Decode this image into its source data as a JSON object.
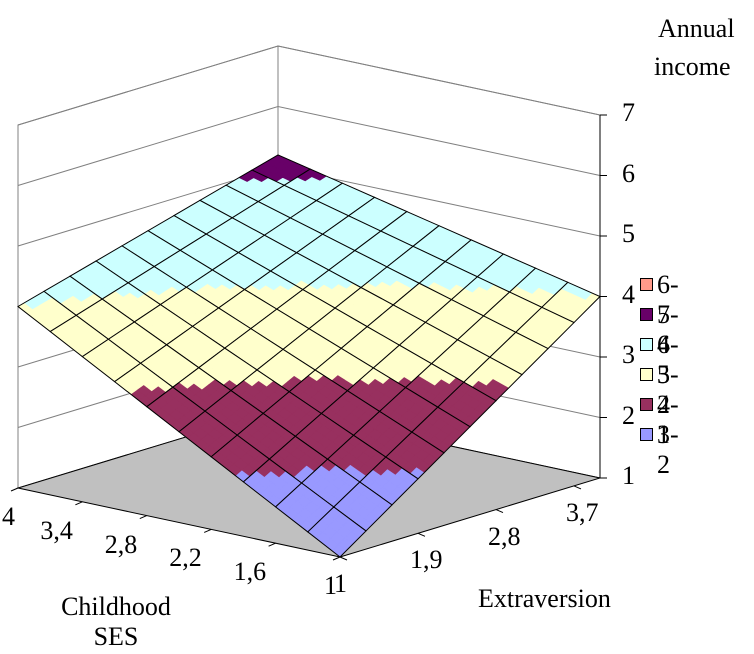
{
  "chart_data": {
    "type": "surface",
    "zlabel_lines": [
      "Annual",
      "income"
    ],
    "xlabel": "Extraversion",
    "ylabel_lines": [
      "Childhood",
      "SES"
    ],
    "z_ticks": [
      "1",
      "2",
      "3",
      "4",
      "5",
      "6",
      "7"
    ],
    "z_range": [
      1,
      7
    ],
    "extraversion_ticks": [
      "1",
      "1,9",
      "2,8",
      "3,7"
    ],
    "ses_ticks": [
      "1",
      "1,6",
      "2,2",
      "2,8",
      "3,4",
      "4"
    ],
    "extraversion_range": [
      1,
      4
    ],
    "ses_range": [
      1,
      4
    ],
    "corner_surface_values": [
      {
        "extraversion": 1,
        "ses": 1,
        "annual_income": 1.0
      },
      {
        "extraversion": 4,
        "ses": 1,
        "annual_income": 4.0
      },
      {
        "extraversion": 1,
        "ses": 4,
        "annual_income": 4.0
      },
      {
        "extraversion": 4,
        "ses": 4,
        "annual_income": 5.2
      }
    ],
    "legend": [
      {
        "label": "6-7",
        "color": "#ff9a8a"
      },
      {
        "label": "5-6",
        "color": "#680068"
      },
      {
        "label": "4-5",
        "color": "#ccffff"
      },
      {
        "label": "3-4",
        "color": "#ffffcc"
      },
      {
        "label": "2-3",
        "color": "#98305f"
      },
      {
        "label": "1-2",
        "color": "#9999ff"
      }
    ],
    "floor_color": "#c0c0c0",
    "grid": true
  }
}
